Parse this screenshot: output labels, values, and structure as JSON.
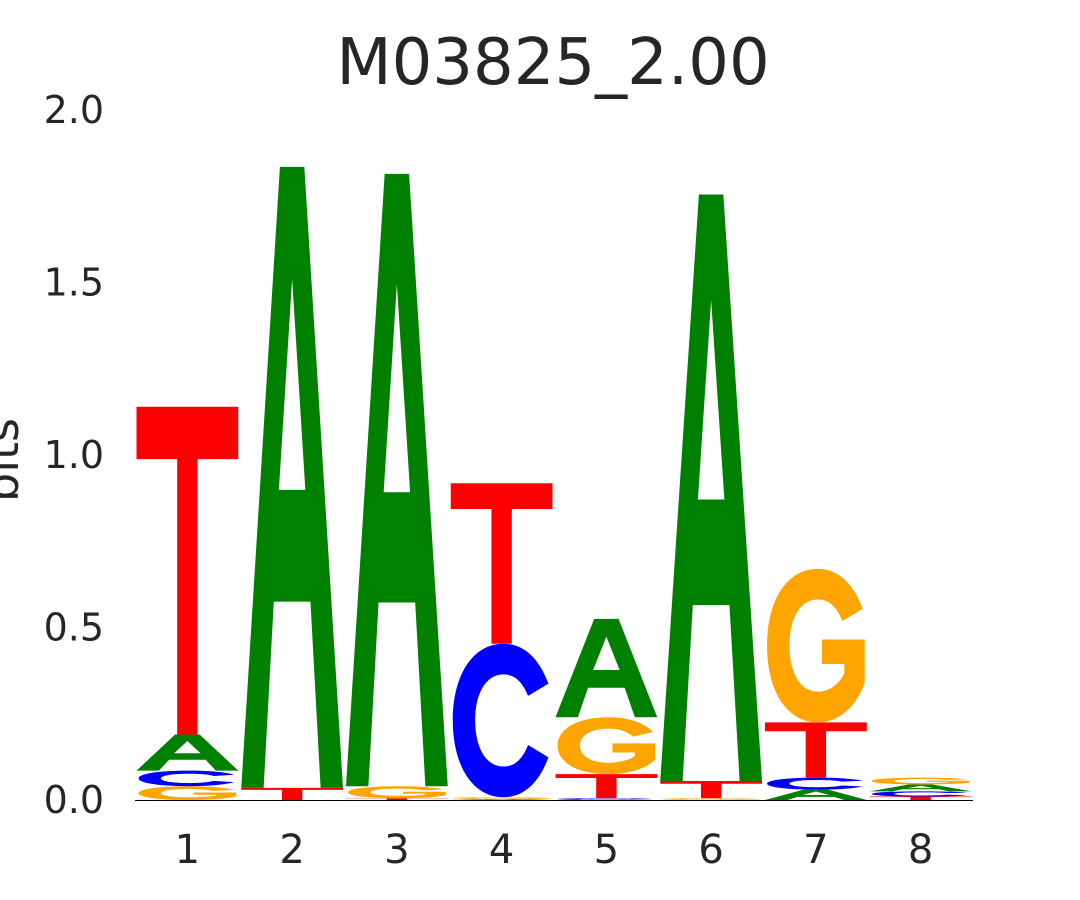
{
  "chart_data": {
    "type": "sequence-logo",
    "title": "M03825_2.00",
    "ylabel": "bits",
    "xlabel": "",
    "ylim": [
      0,
      2
    ],
    "y_ticks": [
      "0.0",
      "0.5",
      "1.0",
      "1.5",
      "2.0"
    ],
    "categories": [
      "1",
      "2",
      "3",
      "4",
      "5",
      "6",
      "7",
      "8"
    ],
    "colors": {
      "A": "#008000",
      "C": "#0000ff",
      "G": "#ffa500",
      "T": "#ff0000"
    },
    "positions": [
      [
        {
          "base": "G",
          "bits": 0.04
        },
        {
          "base": "C",
          "bits": 0.045
        },
        {
          "base": "A",
          "bits": 0.105
        },
        {
          "base": "T",
          "bits": 0.95
        }
      ],
      [
        {
          "base": "T",
          "bits": 0.035
        },
        {
          "base": "A",
          "bits": 1.8
        }
      ],
      [
        {
          "base": "T",
          "bits": 0.005
        },
        {
          "base": "G",
          "bits": 0.035
        },
        {
          "base": "A",
          "bits": 1.775
        }
      ],
      [
        {
          "base": "A",
          "bits": 0.003
        },
        {
          "base": "G",
          "bits": 0.005
        },
        {
          "base": "C",
          "bits": 0.445
        },
        {
          "base": "T",
          "bits": 0.465
        }
      ],
      [
        {
          "base": "C",
          "bits": 0.005
        },
        {
          "base": "T",
          "bits": 0.07
        },
        {
          "base": "G",
          "bits": 0.165
        },
        {
          "base": "A",
          "bits": 0.285
        }
      ],
      [
        {
          "base": "G",
          "bits": 0.005
        },
        {
          "base": "T",
          "bits": 0.05
        },
        {
          "base": "A",
          "bits": 1.7
        }
      ],
      [
        {
          "base": "A",
          "bits": 0.03
        },
        {
          "base": "C",
          "bits": 0.035
        },
        {
          "base": "T",
          "bits": 0.16
        },
        {
          "base": "G",
          "bits": 0.445
        }
      ],
      [
        {
          "base": "T",
          "bits": 0.01
        },
        {
          "base": "C",
          "bits": 0.015
        },
        {
          "base": "A",
          "bits": 0.02
        },
        {
          "base": "G",
          "bits": 0.02
        }
      ]
    ]
  }
}
